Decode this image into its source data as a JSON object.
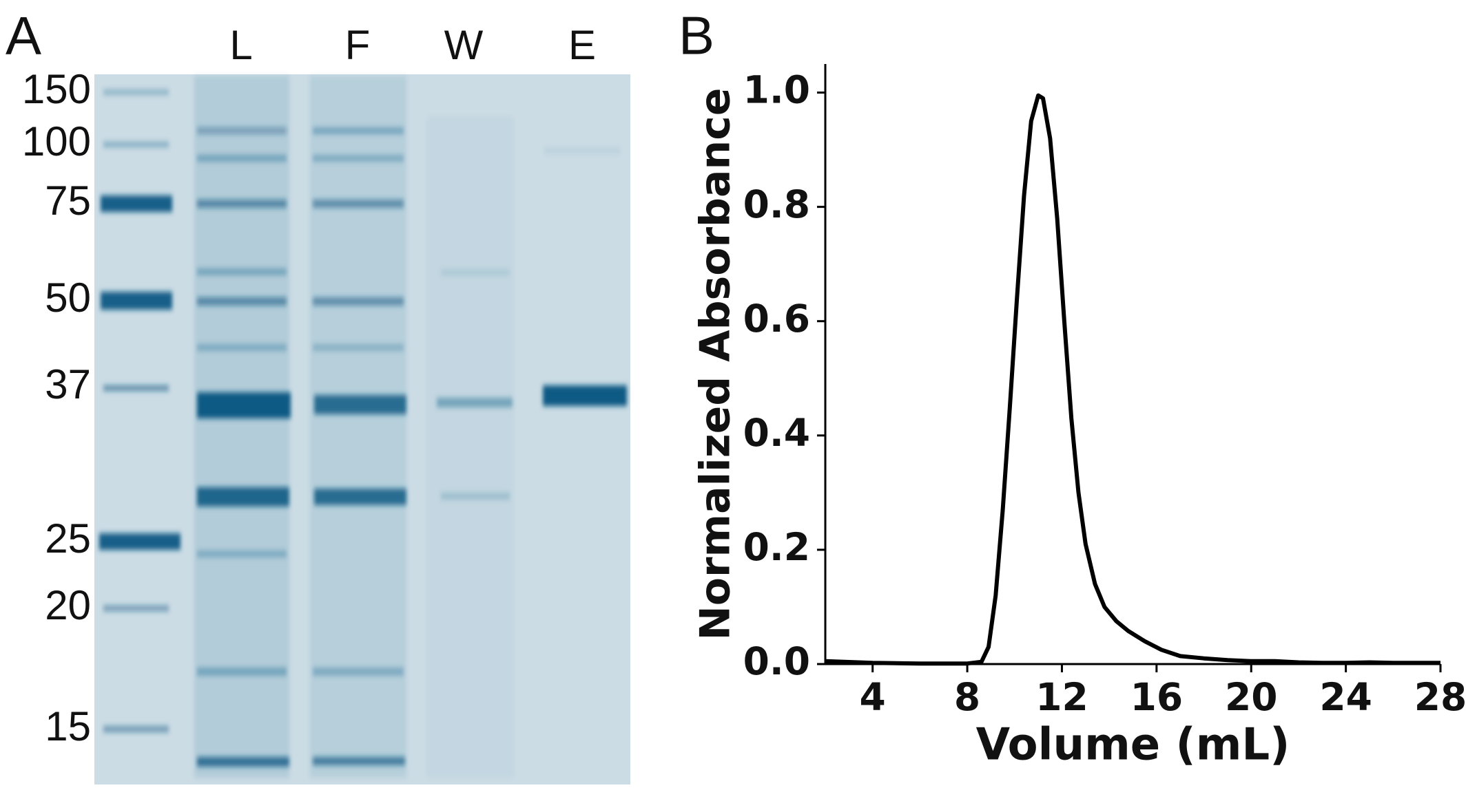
{
  "gel": {
    "panel_label": "A",
    "lanes": [
      "L",
      "F",
      "W",
      "E"
    ],
    "markers": [
      "150",
      "100",
      "75",
      "50",
      "37",
      "25",
      "20",
      "15"
    ]
  },
  "chart_data": {
    "type": "line",
    "panel_label": "B",
    "xlabel": "Volume (mL)",
    "ylabel": "Normalized Absorbance",
    "x": [
      2,
      4,
      6,
      8,
      8.6,
      8.9,
      9.2,
      9.5,
      9.8,
      10.1,
      10.4,
      10.7,
      11,
      11.2,
      11.5,
      11.8,
      12.1,
      12.4,
      12.7,
      13,
      13.4,
      13.8,
      14.3,
      14.8,
      15.5,
      16.2,
      17,
      18,
      19,
      20,
      21,
      22,
      23,
      24,
      25,
      26,
      27,
      28
    ],
    "series": [
      {
        "name": "Absorbance",
        "color": "#000000",
        "values": [
          0.005,
          0.002,
          0.001,
          0.001,
          0.004,
          0.03,
          0.12,
          0.27,
          0.45,
          0.64,
          0.82,
          0.95,
          0.995,
          0.99,
          0.92,
          0.78,
          0.6,
          0.43,
          0.3,
          0.21,
          0.14,
          0.1,
          0.075,
          0.058,
          0.04,
          0.025,
          0.014,
          0.01,
          0.007,
          0.005,
          0.005,
          0.003,
          0.002,
          0.002,
          0.003,
          0.002,
          0.002,
          0.002
        ]
      }
    ],
    "xlim": [
      2,
      28
    ],
    "ylim": [
      0,
      1.05
    ],
    "xticks": [
      4,
      8,
      12,
      16,
      20,
      24,
      28
    ],
    "yticks": [
      {
        "value": 0,
        "label": "0.0"
      },
      {
        "value": 0.2,
        "label": "0.2"
      },
      {
        "value": 0.4,
        "label": "0.4"
      },
      {
        "value": 0.6,
        "label": "0.6"
      },
      {
        "value": 0.8,
        "label": "0.8"
      },
      {
        "value": 1,
        "label": "1.0"
      }
    ]
  }
}
